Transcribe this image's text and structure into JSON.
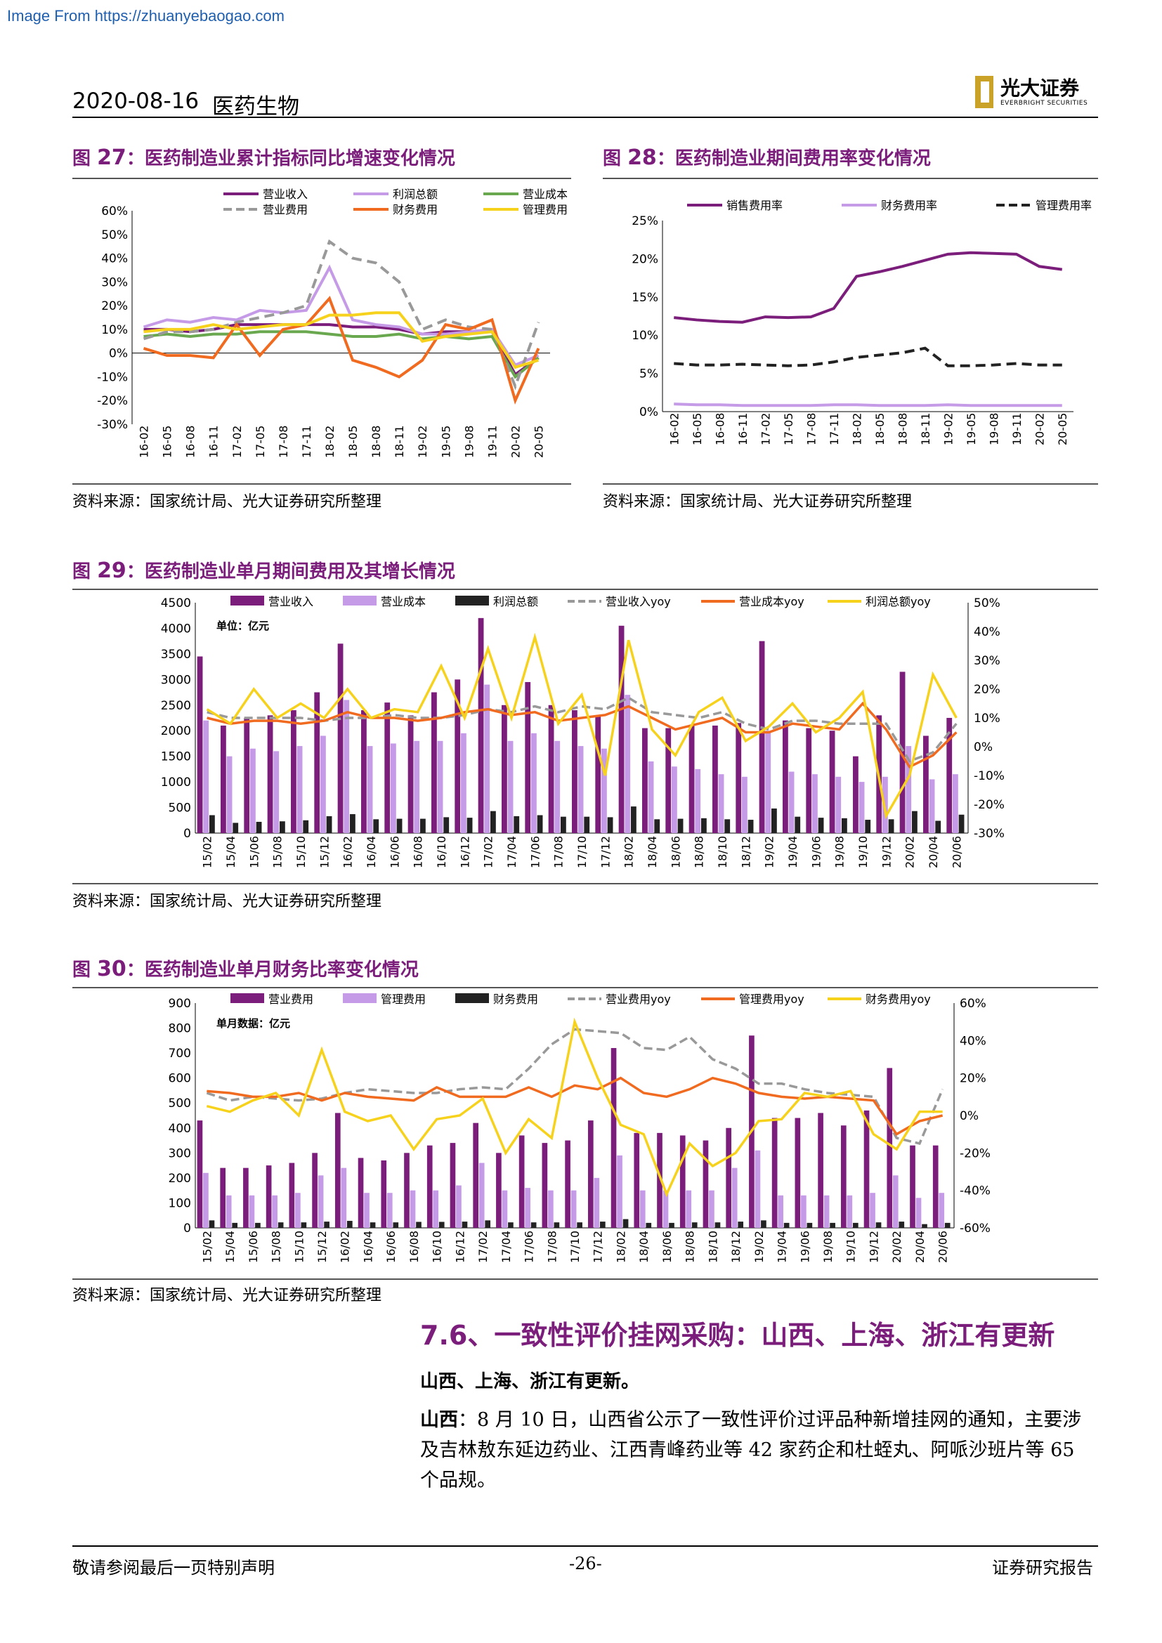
{
  "watermark": "Image From https://zhuanyebaogao.com",
  "header": {
    "date": "2020-08-16",
    "field": "医药生物",
    "logo_cn": "光大证券",
    "logo_en": "EVERBRIGHT SECURITIES"
  },
  "figures": [
    {
      "id": "fig27",
      "label": "图 ",
      "num": "27",
      "title": "：医药制造业累计指标同比增速变化情况",
      "source": "资料来源：国家统计局、光大证券研究所整理"
    },
    {
      "id": "fig28",
      "label": "图 ",
      "num": "28",
      "title": "：医药制造业期间费用率变化情况",
      "source": "资料来源：国家统计局、光大证券研究所整理"
    },
    {
      "id": "fig29",
      "label": "图 ",
      "num": "29",
      "title": "：医药制造业单月期间费用及其增长情况",
      "source": "资料来源：国家统计局、光大证券研究所整理"
    },
    {
      "id": "fig30",
      "label": "图 ",
      "num": "30",
      "title": "：医药制造业单月财务比率变化情况",
      "source": "资料来源：国家统计局、光大证券研究所整理"
    }
  ],
  "chart_data": [
    {
      "id": "fig27",
      "type": "line",
      "x": [
        "16-02",
        "16-05",
        "16-08",
        "16-11",
        "17-02",
        "17-05",
        "17-08",
        "17-11",
        "18-02",
        "18-05",
        "18-08",
        "18-11",
        "19-02",
        "19-05",
        "19-08",
        "19-11",
        "20-02",
        "20-05"
      ],
      "yticks": [
        "60%",
        "50%",
        "40%",
        "30%",
        "20%",
        "10%",
        "0%",
        "-10%",
        "-20%",
        "-30%"
      ],
      "ylim": [
        -30,
        60
      ],
      "series": [
        {
          "name": "营业收入",
          "color": "#7b1d7a",
          "values": [
            10,
            10,
            9,
            10,
            12,
            12,
            12,
            12,
            12,
            11,
            11,
            10,
            8,
            9,
            9,
            9,
            -9,
            -2
          ]
        },
        {
          "name": "利润总额",
          "color": "#c59ae6",
          "values": [
            11,
            14,
            13,
            15,
            14,
            18,
            17,
            18,
            36,
            14,
            12,
            11,
            8,
            8,
            9,
            10,
            -5,
            -1
          ]
        },
        {
          "name": "营业成本",
          "color": "#6aa84f",
          "values": [
            7,
            8,
            7,
            8,
            8,
            9,
            9,
            9,
            8,
            7,
            7,
            8,
            6,
            7,
            6,
            7,
            -10,
            -2
          ]
        },
        {
          "name": "营业费用",
          "color": "#999999",
          "values": [
            6,
            9,
            9,
            10,
            13,
            15,
            17,
            20,
            47,
            40,
            38,
            30,
            10,
            14,
            11,
            10,
            -14,
            13
          ]
        },
        {
          "name": "财务费用",
          "color": "#f06a1f",
          "values": [
            2,
            -1,
            -1,
            -2,
            12,
            -1,
            10,
            12,
            23,
            -3,
            -6,
            -10,
            -3,
            12,
            10,
            14,
            -20,
            2
          ]
        },
        {
          "name": "管理费用",
          "color": "#f7d21c",
          "values": [
            9,
            10,
            10,
            12,
            10,
            11,
            12,
            12,
            16,
            16,
            17,
            17,
            5,
            7,
            8,
            9,
            -6,
            -3
          ]
        }
      ]
    },
    {
      "id": "fig28",
      "type": "line",
      "x": [
        "16-02",
        "16-05",
        "16-08",
        "16-11",
        "17-02",
        "17-05",
        "17-08",
        "17-11",
        "18-02",
        "18-05",
        "18-08",
        "18-11",
        "19-02",
        "19-05",
        "19-08",
        "19-11",
        "20-02",
        "20-05"
      ],
      "yticks": [
        "25%",
        "20%",
        "15%",
        "10%",
        "5%",
        "0%"
      ],
      "ylim": [
        0,
        25
      ],
      "series": [
        {
          "name": "销售费用率",
          "color": "#7b1d7a",
          "values": [
            12.3,
            12.0,
            11.8,
            11.7,
            12.4,
            12.3,
            12.4,
            13.5,
            17.7,
            18.3,
            19.0,
            19.8,
            20.6,
            20.8,
            20.7,
            20.6,
            19.0,
            18.6
          ]
        },
        {
          "name": "财务费用率",
          "color": "#c59ae6",
          "values": [
            1.0,
            0.9,
            0.9,
            0.8,
            0.8,
            0.8,
            0.8,
            0.9,
            0.9,
            0.8,
            0.8,
            0.8,
            0.9,
            0.8,
            0.8,
            0.8,
            0.8,
            0.8
          ]
        },
        {
          "name": "管理费用率",
          "color": "#222222",
          "values": [
            6.3,
            6.1,
            6.1,
            6.2,
            6.1,
            6.0,
            6.1,
            6.5,
            7.1,
            7.4,
            7.7,
            8.3,
            6.0,
            6.0,
            6.1,
            6.3,
            6.1,
            6.1
          ]
        }
      ]
    },
    {
      "id": "fig29",
      "type": "bar",
      "unit_label": "单位：亿元",
      "x": [
        "15/02",
        "15/04",
        "15/06",
        "15/08",
        "15/10",
        "15/12",
        "16/02",
        "16/04",
        "16/06",
        "16/08",
        "16/10",
        "16/12",
        "17/02",
        "17/04",
        "17/06",
        "17/08",
        "17/10",
        "17/12",
        "18/02",
        "18/04",
        "18/06",
        "18/08",
        "18/10",
        "18/12",
        "19/02",
        "19/04",
        "19/06",
        "19/08",
        "19/10",
        "19/12",
        "20/02",
        "20/04",
        "20/06"
      ],
      "yticks_left": [
        "4500",
        "4000",
        "3500",
        "3000",
        "2500",
        "2000",
        "1500",
        "1000",
        "500",
        "0"
      ],
      "ylim_left": [
        0,
        4500
      ],
      "yticks_right": [
        "50%",
        "40%",
        "30%",
        "20%",
        "10%",
        "0%",
        "-10%",
        "-20%",
        "-30%"
      ],
      "ylim_right": [
        -30,
        50
      ],
      "bar_series": [
        {
          "name": "营业收入",
          "color": "#7b1d7a",
          "values": [
            3450,
            2100,
            2250,
            2300,
            2400,
            2750,
            3700,
            2400,
            2550,
            2300,
            2750,
            3000,
            4200,
            2500,
            2950,
            2500,
            2400,
            2300,
            4050,
            2050,
            2050,
            2100,
            2100,
            2150,
            3750,
            2200,
            2050,
            2000,
            1500,
            2300,
            3150,
            1900,
            2250
          ]
        },
        {
          "name": "营业成本",
          "color": "#c59ae6",
          "values": [
            2200,
            1500,
            1650,
            1600,
            1700,
            1900,
            2600,
            1700,
            1750,
            1800,
            1800,
            1950,
            2900,
            1800,
            1950,
            1800,
            1700,
            1650,
            2700,
            1400,
            1300,
            1250,
            1150,
            1100,
            2000,
            1200,
            1150,
            1100,
            1000,
            1100,
            1700,
            1050,
            1150
          ]
        },
        {
          "name": "利润总额",
          "color": "#222222",
          "values": [
            350,
            200,
            220,
            230,
            250,
            330,
            370,
            270,
            280,
            280,
            310,
            300,
            430,
            330,
            350,
            320,
            320,
            310,
            520,
            270,
            280,
            290,
            270,
            260,
            480,
            320,
            300,
            290,
            260,
            270,
            430,
            240,
            360
          ]
        }
      ],
      "line_series": [
        {
          "name": "营业收入yoy",
          "color": "#999999",
          "values": [
            12,
            10,
            10,
            10,
            10,
            9,
            10,
            10,
            11,
            10,
            10,
            11,
            13,
            12,
            14,
            12,
            14,
            13,
            17,
            12,
            11,
            10,
            12,
            8,
            6,
            9,
            9,
            8,
            8,
            8,
            -5,
            -2,
            8
          ]
        },
        {
          "name": "营业成本yoy",
          "color": "#f06a1f",
          "values": [
            10,
            8,
            9,
            9,
            8,
            9,
            12,
            10,
            10,
            9,
            10,
            12,
            13,
            11,
            12,
            9,
            10,
            11,
            14,
            10,
            6,
            8,
            10,
            5,
            5,
            8,
            7,
            6,
            15,
            6,
            -7,
            -3,
            5
          ]
        },
        {
          "name": "利润总额yoy",
          "color": "#f7d21c",
          "values": [
            13,
            8,
            20,
            10,
            15,
            10,
            20,
            10,
            13,
            12,
            28,
            10,
            34,
            10,
            38,
            8,
            18,
            -10,
            37,
            6,
            -3,
            12,
            17,
            2,
            7,
            15,
            5,
            10,
            19,
            -24,
            -10,
            25,
            10
          ]
        }
      ]
    },
    {
      "id": "fig30",
      "type": "bar",
      "unit_label": "单月数据：亿元",
      "x": [
        "15/02",
        "15/04",
        "15/06",
        "15/08",
        "15/10",
        "15/12",
        "16/02",
        "16/04",
        "16/06",
        "16/08",
        "16/10",
        "16/12",
        "17/02",
        "17/04",
        "17/06",
        "17/08",
        "17/10",
        "17/12",
        "18/02",
        "18/04",
        "18/06",
        "18/08",
        "18/10",
        "18/12",
        "19/02",
        "19/04",
        "19/06",
        "19/08",
        "19/10",
        "19/12",
        "20/02",
        "20/04",
        "20/06"
      ],
      "yticks_left": [
        "900",
        "800",
        "700",
        "600",
        "500",
        "400",
        "300",
        "200",
        "100",
        "0"
      ],
      "ylim_left": [
        0,
        900
      ],
      "yticks_right": [
        "60%",
        "40%",
        "20%",
        "0%",
        "-20%",
        "-40%",
        "-60%"
      ],
      "ylim_right": [
        -60,
        60
      ],
      "bar_series": [
        {
          "name": "营业费用",
          "color": "#7b1d7a",
          "values": [
            430,
            240,
            240,
            250,
            260,
            300,
            460,
            280,
            270,
            300,
            330,
            340,
            420,
            300,
            370,
            340,
            350,
            430,
            720,
            380,
            380,
            370,
            350,
            400,
            770,
            440,
            440,
            460,
            410,
            470,
            640,
            330,
            330
          ]
        },
        {
          "name": "管理费用",
          "color": "#c59ae6",
          "values": [
            220,
            130,
            130,
            130,
            140,
            210,
            240,
            140,
            140,
            150,
            150,
            170,
            260,
            150,
            160,
            150,
            150,
            200,
            290,
            150,
            150,
            150,
            150,
            240,
            310,
            130,
            130,
            130,
            130,
            140,
            210,
            120,
            140
          ]
        },
        {
          "name": "财务费用",
          "color": "#222222",
          "values": [
            30,
            20,
            20,
            22,
            22,
            25,
            28,
            22,
            22,
            24,
            24,
            25,
            30,
            22,
            22,
            22,
            22,
            25,
            35,
            20,
            20,
            22,
            22,
            25,
            30,
            20,
            20,
            20,
            20,
            22,
            25,
            15,
            20
          ]
        }
      ],
      "line_series": [
        {
          "name": "营业费用yoy",
          "color": "#999999",
          "values": [
            12,
            8,
            10,
            9,
            8,
            9,
            12,
            14,
            13,
            12,
            12,
            14,
            15,
            14,
            25,
            38,
            46,
            45,
            44,
            36,
            35,
            42,
            30,
            25,
            17,
            17,
            14,
            12,
            11,
            10,
            -12,
            -15,
            14
          ]
        },
        {
          "name": "管理费用yoy",
          "color": "#f06a1f",
          "values": [
            13,
            12,
            10,
            10,
            12,
            8,
            12,
            10,
            9,
            8,
            15,
            10,
            10,
            10,
            15,
            10,
            16,
            14,
            20,
            12,
            10,
            14,
            20,
            17,
            12,
            10,
            9,
            10,
            9,
            8,
            -10,
            -3,
            0
          ]
        },
        {
          "name": "财务费用yoy",
          "color": "#f7d21c",
          "values": [
            5,
            2,
            8,
            12,
            0,
            35,
            2,
            -3,
            0,
            -18,
            -2,
            0,
            9,
            -20,
            -2,
            -12,
            50,
            20,
            -5,
            -10,
            -42,
            -15,
            -27,
            -20,
            -3,
            -2,
            12,
            10,
            13,
            -10,
            -18,
            2,
            2
          ]
        }
      ]
    }
  ],
  "section": {
    "title": "7.6、一致性评价挂网采购：山西、上海、浙江有更新",
    "lead": "山西、上海、浙江有更新。",
    "para_label": "山西",
    "para_text": "：8 月 10 日，山西省公示了一致性评价过评品种新增挂网的通知，主要涉及吉林敖东延边药业、江西青峰药业等 42 家药企和杜蛭丸、阿哌沙班片等 65 个品规。"
  },
  "footer": {
    "left": "敬请参阅最后一页特别声明",
    "page": "-26-",
    "right": "证券研究报告"
  }
}
